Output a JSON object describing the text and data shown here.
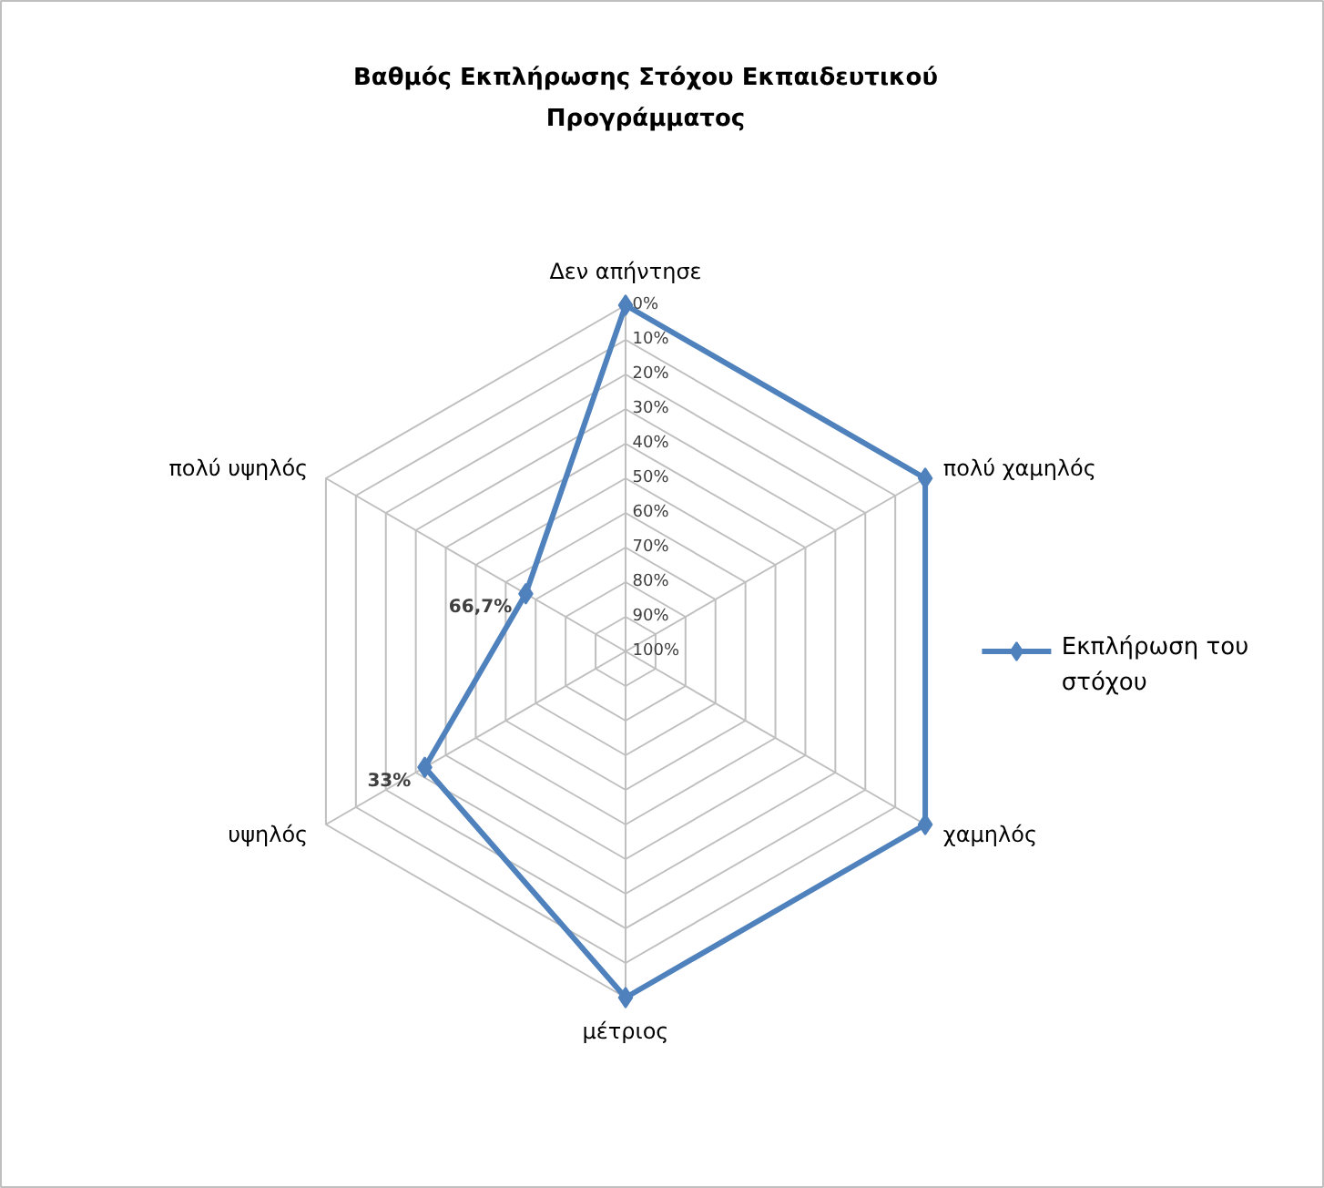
{
  "chart_data": {
    "type": "radar",
    "title": "Βαθμός Εκπλήρωσης Στόχου Εκπαιδευτικού Προγράμματος",
    "categories": [
      "Δεν απήντησε",
      "πολύ χαμηλός",
      "χαμηλός",
      "μέτριος",
      "υψηλός",
      "πολύ υψηλός"
    ],
    "series": [
      {
        "name": "Εκπλήρωση του στόχου",
        "color": "#4f81bd",
        "values": [
          0,
          0,
          0,
          0,
          33,
          66.7
        ],
        "value_labels": [
          null,
          null,
          null,
          null,
          "33%",
          "66,7%"
        ]
      }
    ],
    "ylim": [
      100,
      0
    ],
    "yticks": [
      {
        "value": 0,
        "label": "0%"
      },
      {
        "value": 10,
        "label": "10%"
      },
      {
        "value": 20,
        "label": "20%"
      },
      {
        "value": 30,
        "label": "30%"
      },
      {
        "value": 40,
        "label": "40%"
      },
      {
        "value": 50,
        "label": "50%"
      },
      {
        "value": 60,
        "label": "60%"
      },
      {
        "value": 70,
        "label": "70%"
      },
      {
        "value": 80,
        "label": "80%"
      },
      {
        "value": 90,
        "label": "90%"
      },
      {
        "value": 100,
        "label": "100%"
      }
    ],
    "grid": true,
    "legend": "right",
    "marker": "diamond",
    "line_style": "solid"
  }
}
